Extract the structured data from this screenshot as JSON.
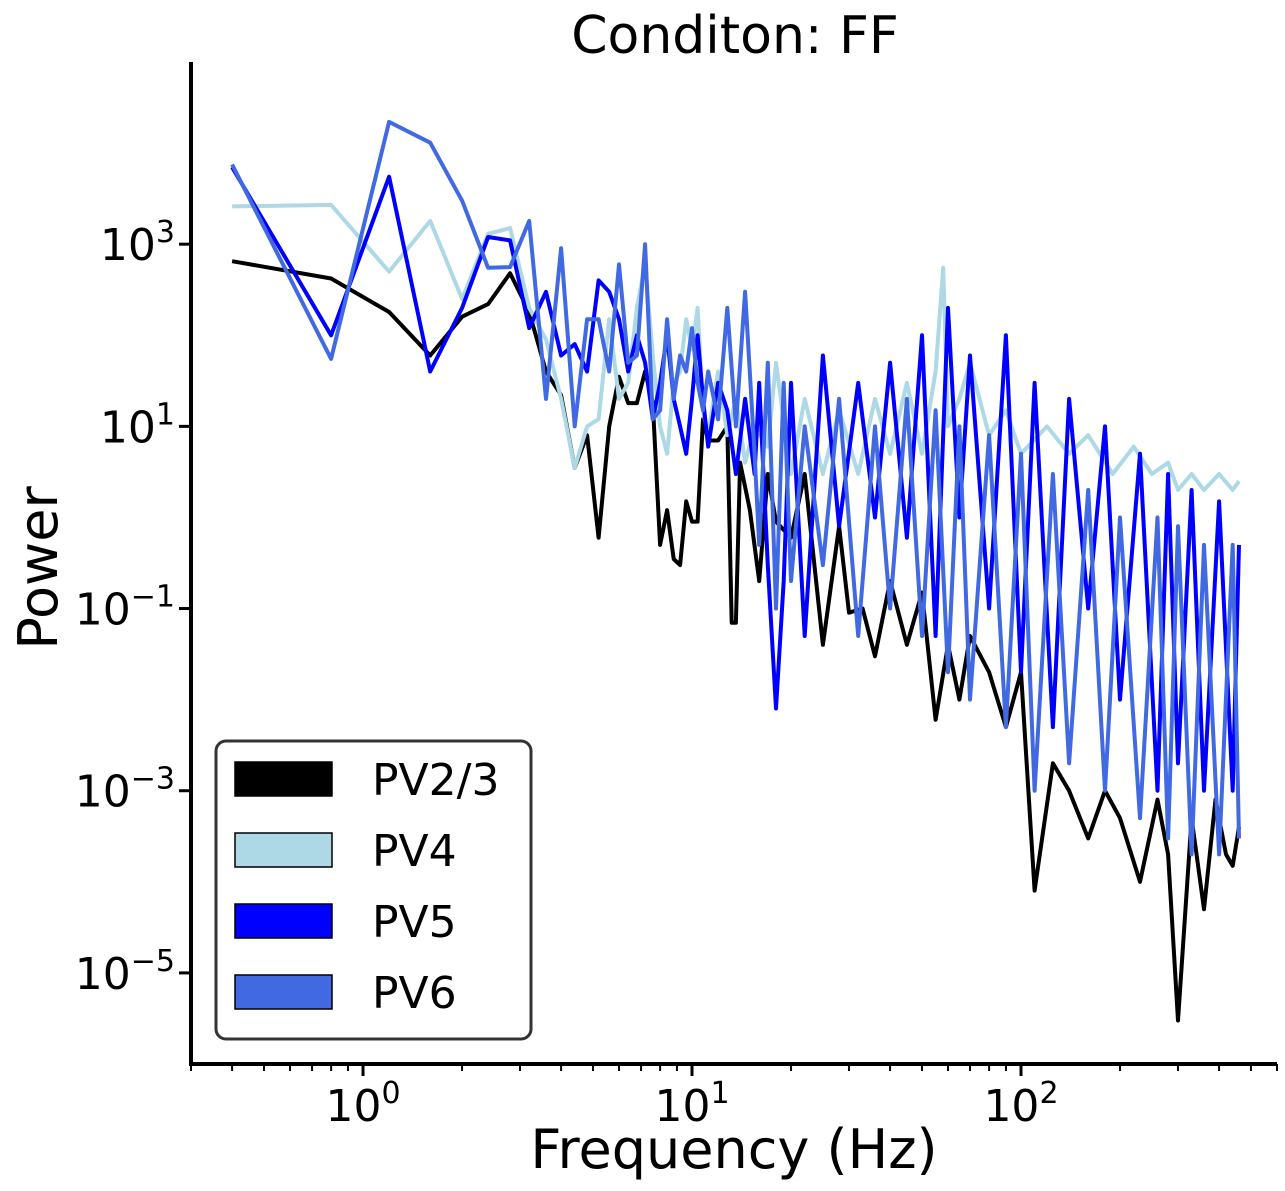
{
  "chart_data": {
    "type": "line",
    "title": "Conditon:  FF",
    "xlabel": "Frequency (Hz)",
    "ylabel": "Power",
    "xscale": "log",
    "yscale": "log",
    "xlim": [
      0.3,
      600
    ],
    "ylim": [
      1e-06,
      100000
    ],
    "x_ticks": [
      {
        "base": "10",
        "exp": "0",
        "value": 1
      },
      {
        "base": "10",
        "exp": "1",
        "value": 10
      },
      {
        "base": "10",
        "exp": "2",
        "value": 100
      }
    ],
    "y_ticks": [
      {
        "base": "10",
        "exp": "3",
        "value": 1000
      },
      {
        "base": "10",
        "exp": "1",
        "value": 10
      },
      {
        "base": "10",
        "exp": "−1",
        "value": 0.1
      },
      {
        "base": "10",
        "exp": "−3",
        "value": 0.001
      },
      {
        "base": "10",
        "exp": "−5",
        "value": 1e-05
      }
    ],
    "grid": false,
    "legend_position": "lower-left",
    "series": [
      {
        "name": "PV2/3",
        "color": "#000000",
        "points": [
          [
            0.4,
            650
          ],
          [
            0.8,
            420
          ],
          [
            1.2,
            180
          ],
          [
            1.6,
            60
          ],
          [
            2.0,
            160
          ],
          [
            2.4,
            220
          ],
          [
            2.8,
            480
          ],
          [
            3.2,
            180
          ],
          [
            3.6,
            40
          ],
          [
            4.0,
            22
          ],
          [
            4.4,
            3.5
          ],
          [
            4.8,
            8
          ],
          [
            5.2,
            0.6
          ],
          [
            5.6,
            10
          ],
          [
            6.0,
            35
          ],
          [
            6.4,
            18
          ],
          [
            6.8,
            18
          ],
          [
            7.2,
            40
          ],
          [
            7.6,
            18
          ],
          [
            8.0,
            0.5
          ],
          [
            8.4,
            1.2
          ],
          [
            8.8,
            0.35
          ],
          [
            9.2,
            0.3
          ],
          [
            9.6,
            1.5
          ],
          [
            10.0,
            0.9
          ],
          [
            10.4,
            0.9
          ],
          [
            10.8,
            12
          ],
          [
            11.2,
            7
          ],
          [
            12.0,
            7
          ],
          [
            12.8,
            10
          ],
          [
            13.2,
            0.07
          ],
          [
            13.6,
            0.07
          ],
          [
            14.0,
            4
          ],
          [
            15.0,
            1.2
          ],
          [
            16.0,
            0.2
          ],
          [
            17.0,
            3
          ],
          [
            18.0,
            0.9
          ],
          [
            20.0,
            0.6
          ],
          [
            22.0,
            3
          ],
          [
            25.0,
            0.04
          ],
          [
            28.0,
            0.8
          ],
          [
            30.0,
            0.09
          ],
          [
            33.0,
            0.1
          ],
          [
            36.0,
            0.03
          ],
          [
            40.0,
            0.2
          ],
          [
            45.0,
            0.04
          ],
          [
            50.0,
            0.15
          ],
          [
            55.0,
            0.006
          ],
          [
            60.0,
            0.04
          ],
          [
            65.0,
            0.01
          ],
          [
            70.0,
            0.05
          ],
          [
            80.0,
            0.02
          ],
          [
            90.0,
            0.005
          ],
          [
            100.0,
            0.02
          ],
          [
            110.0,
            8e-05
          ],
          [
            125.0,
            0.002
          ],
          [
            140.0,
            0.001
          ],
          [
            160.0,
            0.0003
          ],
          [
            180.0,
            0.001
          ],
          [
            200.0,
            0.0005
          ],
          [
            230.0,
            0.0001
          ],
          [
            260.0,
            0.0008
          ],
          [
            280.0,
            0.0002
          ],
          [
            300.0,
            3e-06
          ],
          [
            330.0,
            0.0005
          ],
          [
            360.0,
            5e-05
          ],
          [
            390.0,
            0.0008
          ],
          [
            420.0,
            0.0002
          ],
          [
            440.0,
            0.00015
          ],
          [
            460.0,
            0.0004
          ]
        ]
      },
      {
        "name": "PV4",
        "color": "#add8e6",
        "points": [
          [
            0.4,
            2600
          ],
          [
            0.8,
            2700
          ],
          [
            1.2,
            500
          ],
          [
            1.6,
            1800
          ],
          [
            2.0,
            250
          ],
          [
            2.4,
            1300
          ],
          [
            2.8,
            1500
          ],
          [
            3.2,
            200
          ],
          [
            3.6,
            90
          ],
          [
            4.0,
            20
          ],
          [
            4.4,
            3.5
          ],
          [
            4.8,
            10
          ],
          [
            5.2,
            12
          ],
          [
            5.6,
            150
          ],
          [
            6.0,
            20
          ],
          [
            6.4,
            30
          ],
          [
            6.8,
            200
          ],
          [
            7.2,
            600
          ],
          [
            7.6,
            60
          ],
          [
            8.0,
            10
          ],
          [
            8.4,
            5
          ],
          [
            8.8,
            30
          ],
          [
            9.2,
            40
          ],
          [
            9.6,
            150
          ],
          [
            10.0,
            70
          ],
          [
            10.4,
            200
          ],
          [
            10.8,
            15
          ],
          [
            11.2,
            8
          ],
          [
            12.0,
            40
          ],
          [
            12.8,
            8
          ],
          [
            13.6,
            20
          ],
          [
            14.5,
            4
          ],
          [
            15.5,
            10
          ],
          [
            17.0,
            6
          ],
          [
            18.0,
            50
          ],
          [
            20.0,
            3
          ],
          [
            22.0,
            20
          ],
          [
            25.0,
            3
          ],
          [
            28.0,
            15
          ],
          [
            32.0,
            3
          ],
          [
            36.0,
            20
          ],
          [
            40.0,
            5
          ],
          [
            45.0,
            30
          ],
          [
            50.0,
            5
          ],
          [
            55.0,
            40
          ],
          [
            58.0,
            550
          ],
          [
            60.0,
            10
          ],
          [
            65.0,
            20
          ],
          [
            70.0,
            50
          ],
          [
            80.0,
            8
          ],
          [
            90.0,
            15
          ],
          [
            100.0,
            5
          ],
          [
            120.0,
            10
          ],
          [
            140.0,
            5
          ],
          [
            160.0,
            8
          ],
          [
            190.0,
            3
          ],
          [
            220.0,
            6
          ],
          [
            250.0,
            3
          ],
          [
            280.0,
            4
          ],
          [
            300.0,
            2
          ],
          [
            330.0,
            3
          ],
          [
            360.0,
            2
          ],
          [
            400.0,
            3
          ],
          [
            440.0,
            2
          ],
          [
            460.0,
            2.5
          ]
        ]
      },
      {
        "name": "PV5",
        "color": "#0000ff",
        "points": [
          [
            0.4,
            7000
          ],
          [
            0.8,
            100
          ],
          [
            1.2,
            5500
          ],
          [
            1.6,
            40
          ],
          [
            2.0,
            200
          ],
          [
            2.4,
            1200
          ],
          [
            2.8,
            1100
          ],
          [
            3.2,
            120
          ],
          [
            3.6,
            300
          ],
          [
            4.0,
            60
          ],
          [
            4.4,
            80
          ],
          [
            4.8,
            40
          ],
          [
            5.2,
            400
          ],
          [
            5.6,
            300
          ],
          [
            6.0,
            150
          ],
          [
            6.4,
            40
          ],
          [
            6.8,
            100
          ],
          [
            7.2,
            50
          ],
          [
            7.6,
            12
          ],
          [
            8.0,
            30
          ],
          [
            8.4,
            100
          ],
          [
            8.8,
            20
          ],
          [
            9.2,
            10
          ],
          [
            9.6,
            5
          ],
          [
            10.0,
            20
          ],
          [
            10.4,
            100
          ],
          [
            10.8,
            20
          ],
          [
            11.2,
            6
          ],
          [
            12.0,
            30
          ],
          [
            12.8,
            15
          ],
          [
            13.6,
            3
          ],
          [
            14.5,
            20
          ],
          [
            15.5,
            3
          ],
          [
            16.0,
            30
          ],
          [
            17.0,
            0.3
          ],
          [
            18.0,
            0.008
          ],
          [
            19.0,
            0.2
          ],
          [
            20.0,
            30
          ],
          [
            22.0,
            0.05
          ],
          [
            25.0,
            60
          ],
          [
            28.0,
            0.8
          ],
          [
            32.0,
            30
          ],
          [
            36.0,
            1
          ],
          [
            40.0,
            50
          ],
          [
            45.0,
            0.6
          ],
          [
            50.0,
            100
          ],
          [
            55.0,
            0.05
          ],
          [
            60.0,
            200
          ],
          [
            65.0,
            1
          ],
          [
            70.0,
            60
          ],
          [
            80.0,
            0.1
          ],
          [
            90.0,
            100
          ],
          [
            100.0,
            0.02
          ],
          [
            110.0,
            30
          ],
          [
            125.0,
            0.005
          ],
          [
            140.0,
            20
          ],
          [
            160.0,
            0.1
          ],
          [
            180.0,
            10
          ],
          [
            200.0,
            0.01
          ],
          [
            230.0,
            5
          ],
          [
            260.0,
            0.001
          ],
          [
            280.0,
            3
          ],
          [
            300.0,
            0.002
          ],
          [
            330.0,
            2
          ],
          [
            360.0,
            0.001
          ],
          [
            400.0,
            1.5
          ],
          [
            440.0,
            0.001
          ],
          [
            460.0,
            0.5
          ]
        ]
      },
      {
        "name": "PV6",
        "color": "#4169e1",
        "points": [
          [
            0.4,
            7500
          ],
          [
            0.8,
            55
          ],
          [
            1.2,
            22000
          ],
          [
            1.6,
            13000
          ],
          [
            2.0,
            3000
          ],
          [
            2.4,
            550
          ],
          [
            2.8,
            560
          ],
          [
            3.2,
            1800
          ],
          [
            3.6,
            20
          ],
          [
            4.0,
            900
          ],
          [
            4.4,
            10
          ],
          [
            4.8,
            150
          ],
          [
            5.2,
            150
          ],
          [
            5.6,
            40
          ],
          [
            6.0,
            600
          ],
          [
            6.4,
            50
          ],
          [
            6.8,
            60
          ],
          [
            7.2,
            1000
          ],
          [
            7.6,
            12
          ],
          [
            8.0,
            15
          ],
          [
            8.4,
            150
          ],
          [
            8.8,
            20
          ],
          [
            9.2,
            60
          ],
          [
            9.6,
            40
          ],
          [
            10.0,
            120
          ],
          [
            10.4,
            30
          ],
          [
            10.8,
            15
          ],
          [
            11.2,
            40
          ],
          [
            12.0,
            12
          ],
          [
            12.8,
            200
          ],
          [
            13.6,
            10
          ],
          [
            14.5,
            300
          ],
          [
            15.5,
            5
          ],
          [
            16.0,
            0.5
          ],
          [
            17.0,
            50
          ],
          [
            18.0,
            0.1
          ],
          [
            19.0,
            30
          ],
          [
            20.0,
            0.2
          ],
          [
            22.0,
            10
          ],
          [
            25.0,
            0.3
          ],
          [
            28.0,
            20
          ],
          [
            32.0,
            0.05
          ],
          [
            36.0,
            10
          ],
          [
            40.0,
            0.1
          ],
          [
            45.0,
            20
          ],
          [
            50.0,
            0.05
          ],
          [
            55.0,
            15
          ],
          [
            60.0,
            0.02
          ],
          [
            65.0,
            10
          ],
          [
            70.0,
            0.01
          ],
          [
            80.0,
            8
          ],
          [
            90.0,
            0.005
          ],
          [
            100.0,
            5
          ],
          [
            110.0,
            0.001
          ],
          [
            125.0,
            3
          ],
          [
            140.0,
            0.002
          ],
          [
            160.0,
            2
          ],
          [
            180.0,
            0.001
          ],
          [
            200.0,
            1
          ],
          [
            230.0,
            0.0005
          ],
          [
            260.0,
            1
          ],
          [
            280.0,
            0.0003
          ],
          [
            300.0,
            0.8
          ],
          [
            330.0,
            0.0002
          ],
          [
            360.0,
            0.5
          ],
          [
            400.0,
            0.0002
          ],
          [
            440.0,
            0.5
          ],
          [
            460.0,
            0.0003
          ]
        ]
      }
    ]
  }
}
